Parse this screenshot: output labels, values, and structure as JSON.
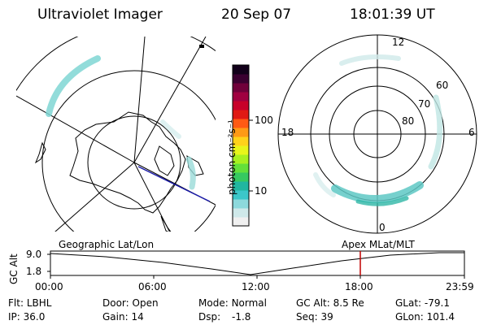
{
  "header": {
    "instrument": "Ultraviolet Imager",
    "date": "20 Sep 07",
    "time": "18:01:39 UT"
  },
  "left_map": {
    "caption": "Geographic Lat/Lon"
  },
  "right_map": {
    "caption": "Apex  MLat/MLT",
    "mlt_labels": [
      "12",
      "18",
      "6",
      "0"
    ],
    "lat_labels": [
      "60",
      "70",
      "80"
    ]
  },
  "colorbar": {
    "unit_label": "photon cm⁻²s⁻¹",
    "ticks": [
      "100",
      "10"
    ],
    "scale": "log",
    "colors": [
      "#f0f0f0",
      "#cfe9ea",
      "#8dd9dc",
      "#3cc7c9",
      "#21b6a0",
      "#36c960",
      "#63e03a",
      "#a8f020",
      "#e8f51a",
      "#ffd21a",
      "#ff9a16",
      "#ff5a14",
      "#e01a14",
      "#c8002a",
      "#a00040",
      "#70003a",
      "#3a0030",
      "#12001a"
    ]
  },
  "timeline": {
    "axis_title": "GC Alt",
    "y_ticks": [
      "9.0",
      "1.8"
    ],
    "x_ticks": [
      "00:00",
      "06:00",
      "12:00",
      "18:00",
      "23:59"
    ],
    "marker_time": "18:01",
    "marker_color": "#c00000"
  },
  "info": {
    "flt_label": "Flt:",
    "flt_value": "LBHL",
    "ip_label": "IP:",
    "ip_value": "36.0",
    "door_label": "Door:",
    "door_value": "Open",
    "gain_label": "Gain:",
    "gain_value": "14",
    "mode_label": "Mode:",
    "mode_value": "Normal",
    "dsp_label": "Dsp:",
    "dsp_value": "-1.8",
    "gcalt_label": "GC Alt:",
    "gcalt_value": "8.5 Re",
    "seq_label": "Seq:",
    "seq_value": "39",
    "glat_label": "GLat:",
    "glat_value": "-79.1",
    "glon_label": "GLon:",
    "glon_value": "101.4"
  }
}
